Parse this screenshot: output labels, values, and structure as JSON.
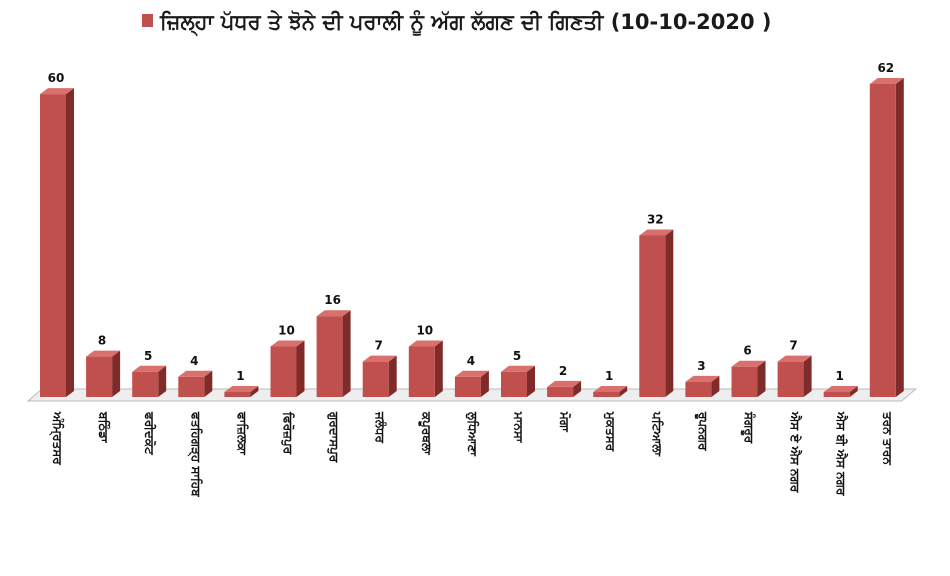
{
  "chart_data": {
    "type": "bar",
    "title": "ਜ਼ਿਲ੍ਹਾ ਪੱਧਰ ਤੇ ਝੋਨੇ ਦੀ ਪਰਾਲੀ ਨੂੰ ਅੱਗ ਲੱਗਣ ਦੀ ਗਿਣਤੀ (10-10-2020 )",
    "xlabel": "",
    "ylabel": "",
    "ylim": [
      0,
      62
    ],
    "grid": false,
    "legend": "top-left",
    "categories": [
      "ਅੰਮ੍ਰਿਤਸਰ",
      "ਬਠਿੰਡਾ",
      "ਫਰੀਦਕੋਟ",
      "ਫਤਹਿਗੜ੍ਹ ਸਾਹਿਬ",
      "ਫਾਜ਼ਿਲਕਾ",
      "ਫਿਰੋਜ਼ਪੁਰ",
      "ਗੁਰਦਾਸਪੁਰ",
      "ਜਲੰਧਰ",
      "ਕਪੂਰਥਲਾ",
      "ਲੁਧਿਆਣਾ",
      "ਮਾਨਸਾ",
      "ਮੋਗਾ",
      "ਮੁਕਤਸਰ",
      "ਪਟਿਆਲਾ",
      "ਰੂਪਨਗਰ",
      "ਸੰਗਰੂਰ",
      "ਐਸ ਏ ਐਸ ਨਗਰ",
      "ਐਸ ਬੀ ਐਸ ਨਗਰ",
      "ਤਰਨ ਤਾਰਨ"
    ],
    "values": [
      60,
      8,
      5,
      4,
      1,
      10,
      16,
      7,
      10,
      4,
      5,
      2,
      1,
      32,
      3,
      6,
      7,
      1,
      62
    ],
    "colors": {
      "front": "#c0504d",
      "side": "#7f2b29",
      "top": "#d9706d",
      "floor": "#eeeeee",
      "floor_edge": "#bbbbbb"
    }
  }
}
